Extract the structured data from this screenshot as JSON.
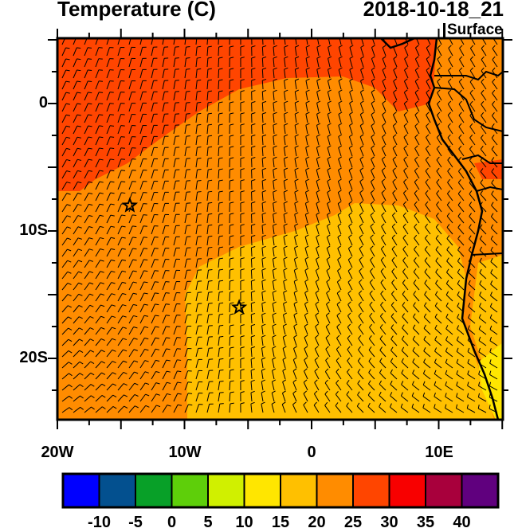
{
  "header": {
    "title": "Temperature (C)",
    "valid_time": "2018-10-18_21",
    "level": "Surface"
  },
  "map": {
    "lon_ticks": [
      "20W",
      "10W",
      "0",
      "10E"
    ],
    "lat_ticks": [
      "0",
      "10S",
      "20S"
    ],
    "markers": [
      {
        "type": "star",
        "lon": -14.3,
        "lat": -8.0
      },
      {
        "type": "star",
        "lon": -5.7,
        "lat": -16.0
      }
    ],
    "overlay": "wind-barbs"
  },
  "colorbar": {
    "labels": [
      "-10",
      "-5",
      "0",
      "5",
      "10",
      "15",
      "20",
      "25",
      "30",
      "35",
      "40"
    ],
    "colors": [
      "#0000ff",
      "#03508f",
      "#08a028",
      "#5ecf0a",
      "#d0f000",
      "#ffe600",
      "#ffc000",
      "#ff8c00",
      "#ff4500",
      "#f80000",
      "#a8003c",
      "#60007e"
    ]
  }
}
